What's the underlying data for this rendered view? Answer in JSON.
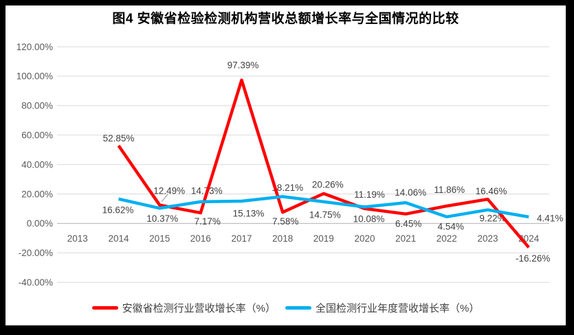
{
  "frame": {
    "border_color": "#000000",
    "background": "#FFFFFF"
  },
  "title": "图4 安徽省检验检测机构营收总额增长率与全国情况的比较",
  "chart_data": {
    "type": "line",
    "categories": [
      "2013",
      "2014",
      "2015",
      "2016",
      "2017",
      "2018",
      "2019",
      "2020",
      "2021",
      "2022",
      "2023",
      "2024"
    ],
    "series": [
      {
        "name": "安徽省检测行业营收增长率（%）",
        "color": "#FF0000",
        "values": [
          null,
          52.85,
          12.49,
          7.17,
          97.39,
          7.58,
          20.26,
          10.08,
          6.45,
          11.86,
          16.46,
          -16.26
        ],
        "point_labels": [
          "",
          "52.85%",
          "12.49%",
          "7.17%",
          "97.39%",
          "7.58%",
          "20.26%",
          "10.08%",
          "6.45%",
          "11.86%",
          "16.46%",
          "-16.26%"
        ],
        "label_offsets": [
          null,
          [
            0,
            -11
          ],
          [
            14,
            -21
          ],
          [
            10,
            12
          ],
          [
            2,
            -22
          ],
          [
            4,
            13
          ],
          [
            6,
            -13
          ],
          [
            6,
            15
          ],
          [
            4,
            14
          ],
          [
            4,
            -24
          ],
          [
            5,
            -12
          ],
          [
            6,
            16
          ]
        ],
        "leader_points": [
          2
        ]
      },
      {
        "name": "全国检测行业年度营收增长率（%）",
        "color": "#00B0F0",
        "values": [
          null,
          16.62,
          10.37,
          14.73,
          15.13,
          18.21,
          14.75,
          11.19,
          14.06,
          4.54,
          9.22,
          4.41
        ],
        "point_labels": [
          "",
          "16.62%",
          "10.37%",
          "14.73%",
          "15.13%",
          "18.21%",
          "14.75%",
          "11.19%",
          "14.06%",
          "4.54%",
          "9.22%",
          "4.41%"
        ],
        "label_offsets": [
          null,
          [
            -1,
            16
          ],
          [
            4,
            15
          ],
          [
            9,
            -16
          ],
          [
            10,
            18
          ],
          [
            7,
            -13
          ],
          [
            2,
            19
          ],
          [
            7,
            -18
          ],
          [
            7,
            -15
          ],
          [
            6,
            14
          ],
          [
            7,
            12
          ],
          [
            31,
            2
          ]
        ],
        "leader_points": []
      }
    ],
    "ylim": [
      -40,
      120
    ],
    "ytick_step": 20,
    "ytick_labels": [
      "120.00%",
      "100.00%",
      "80.00%",
      "60.00%",
      "40.00%",
      "20.00%",
      "0.00%",
      "-20.00%",
      "-40.00%"
    ],
    "grid": true,
    "legend_position": "bottom",
    "colors": {
      "grid": "#D9D9D9",
      "axis": "#BFBFBF",
      "tick_text": "#595959",
      "data_label": "#404040",
      "leader": "#A6A6A6"
    }
  }
}
